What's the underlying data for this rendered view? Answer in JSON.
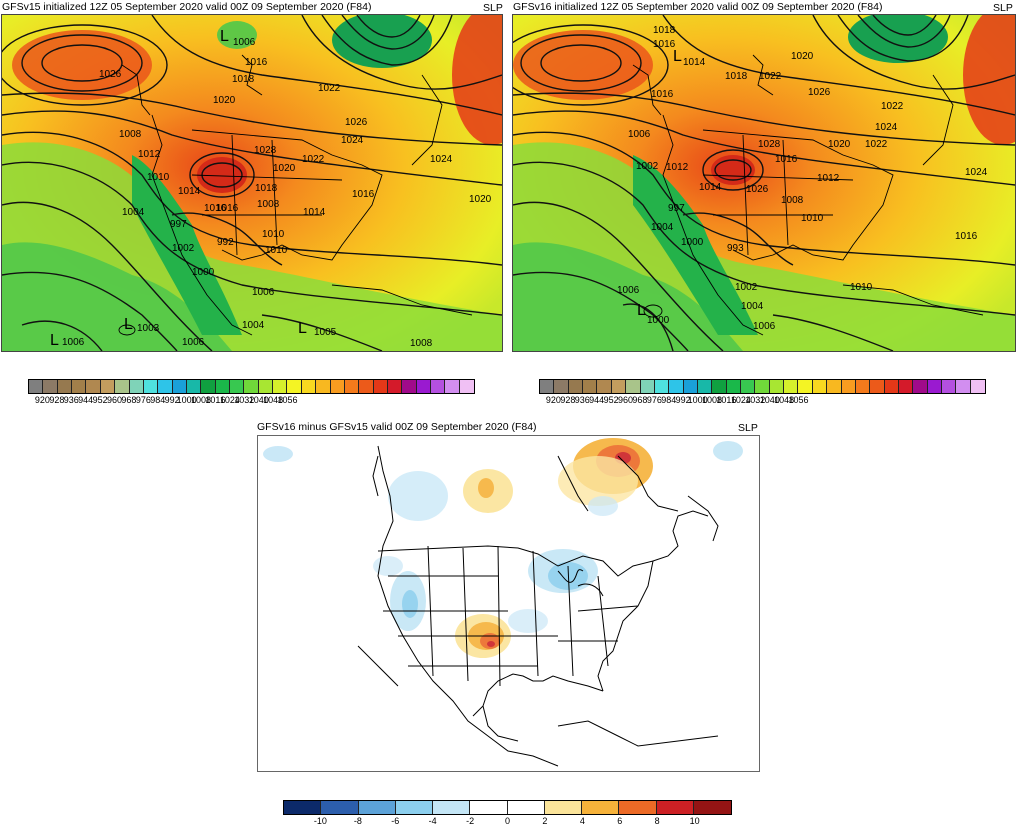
{
  "panels": {
    "left": {
      "title": "GFSv15 initialized 12Z 05 September 2020 valid 00Z 09 September 2020 (F84)",
      "variable": "SLP",
      "contour_labels": [
        "1026",
        "1006",
        "1016",
        "1018",
        "1022",
        "1026",
        "1020",
        "1024",
        "1028",
        "1008",
        "1012",
        "1010",
        "1014",
        "1016",
        "1018",
        "1020",
        "1022",
        "1024",
        "1016",
        "1020",
        "1004",
        "997",
        "1002",
        "1016",
        "992",
        "1008",
        "1010",
        "1014",
        "1000",
        "1006",
        "1004",
        "1003",
        "1005",
        "1006",
        "1010",
        "1008",
        "1006"
      ],
      "low_markers": [
        "L",
        "L",
        "L",
        "L"
      ]
    },
    "right": {
      "title": "GFSv16 initialized 12Z 05 September 2020 valid 00Z 09 September 2020 (F84)",
      "variable": "SLP",
      "contour_labels": [
        "1018",
        "1016",
        "1014",
        "1020",
        "1018",
        "1022",
        "1026",
        "1016",
        "1022",
        "1024",
        "1028",
        "1006",
        "1020",
        "1022",
        "1002",
        "1012",
        "1014",
        "1026",
        "1016",
        "1012",
        "1024",
        "997",
        "1008",
        "1010",
        "1016",
        "1004",
        "1000",
        "993",
        "1006",
        "1002",
        "1010",
        "1004",
        "1000",
        "1006"
      ],
      "low_markers": [
        "L",
        "L"
      ]
    },
    "diff": {
      "title": "GFSv16 minus GFSv15 valid 00Z 09 September 2020 (F84)",
      "variable": "SLP"
    }
  },
  "colorbars": {
    "slp": {
      "colors": [
        "#7f7f7f",
        "#8c7a66",
        "#96794f",
        "#a27f4a",
        "#b08850",
        "#c39d5e",
        "#a9c48a",
        "#7fd3b8",
        "#4fe1df",
        "#2ec4e8",
        "#1aa0d8",
        "#18b8a8",
        "#10a040",
        "#1ab84a",
        "#38c850",
        "#70d83a",
        "#a8e632",
        "#d6f02c",
        "#f4f424",
        "#f8d820",
        "#f8b820",
        "#f89c20",
        "#f47a1c",
        "#ec5a1a",
        "#e43818",
        "#d41a2a",
        "#a00a8a",
        "#9a1ad0",
        "#b450e0",
        "#d28ef0",
        "#f0c0f4"
      ],
      "labels": [
        "920",
        "928",
        "936",
        "944",
        "952",
        "960",
        "968",
        "976",
        "984",
        "992",
        "1000",
        "1008",
        "1016",
        "1024",
        "1032",
        "1040",
        "1048",
        "1056"
      ]
    },
    "diff": {
      "colors": [
        "#0c2a6a",
        "#2c5eac",
        "#5ca2d8",
        "#8ccfee",
        "#c4e6f6",
        "#ffffff",
        "#ffffff",
        "#fbe49a",
        "#f6b23a",
        "#ec6a26",
        "#cc2024",
        "#941414"
      ],
      "labels": [
        "-10",
        "-8",
        "-6",
        "-4",
        "-2",
        "0",
        "2",
        "4",
        "6",
        "8",
        "10"
      ]
    }
  }
}
